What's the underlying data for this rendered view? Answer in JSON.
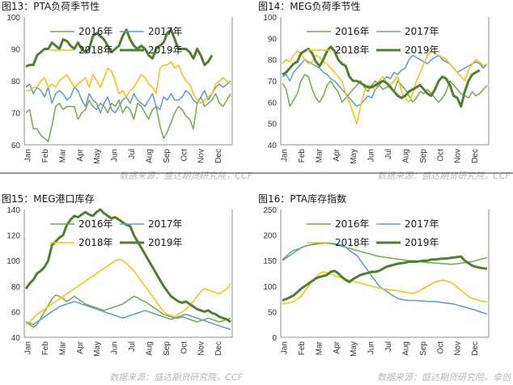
{
  "colors": {
    "y2016": "#70ad47",
    "y2017": "#5b9bd5",
    "y2018": "#ffc000",
    "y2019": "#4f7f2f"
  },
  "months": [
    "Jan",
    "Feb",
    "Mar",
    "Apr",
    "May",
    "Jun",
    "Jul",
    "Aug",
    "Sep",
    "Oct",
    "Nov",
    "Dec"
  ],
  "chart_data": [
    {
      "type": "line",
      "title": "图13：PTA负荷季节性",
      "source": "数据来源：盛达期货研究院，CCF",
      "ylim": [
        60,
        100
      ],
      "yticks": [
        60,
        70,
        80,
        90,
        100
      ],
      "xlabel": "",
      "ylabel": "",
      "legend_position": "top",
      "series": [
        {
          "name": "2016年",
          "key": "y2016",
          "values": [
            70,
            71,
            65,
            65,
            63,
            62,
            61,
            66,
            72,
            73,
            71,
            72,
            72,
            72,
            68,
            70,
            71,
            74,
            72,
            71,
            73,
            72,
            70,
            73,
            72,
            74,
            70,
            72,
            71,
            68,
            73,
            72,
            70,
            68,
            71,
            72,
            66,
            62,
            64,
            67,
            70,
            72,
            71,
            69,
            68,
            65,
            73,
            75,
            72,
            73,
            74,
            76,
            73,
            72,
            74,
            76
          ]
        },
        {
          "name": "2017年",
          "key": "y2017",
          "values": [
            78,
            79,
            76,
            78,
            77,
            75,
            78,
            73,
            76,
            77,
            76,
            74,
            75,
            78,
            77,
            74,
            72,
            76,
            74,
            73,
            70,
            73,
            75,
            71,
            70,
            72,
            74,
            75,
            73,
            76,
            74,
            73,
            72,
            74,
            76,
            72,
            71,
            75,
            74,
            76,
            74,
            74,
            75,
            77,
            76,
            74,
            73,
            75,
            77,
            74,
            76,
            78,
            79,
            78,
            79,
            80
          ]
        },
        {
          "name": "2018年",
          "key": "y2018",
          "values": [
            77,
            77,
            78,
            78,
            80,
            81,
            78,
            79,
            78,
            80,
            81,
            82,
            80,
            78,
            79,
            80,
            81,
            78,
            82,
            80,
            78,
            81,
            84,
            83,
            80,
            76,
            77,
            75,
            77,
            78,
            80,
            82,
            81,
            79,
            78,
            76,
            84,
            85,
            85,
            86,
            84,
            85,
            82,
            80,
            79,
            76,
            74,
            73,
            74,
            75,
            76,
            79,
            80,
            81,
            80,
            79
          ]
        },
        {
          "name": "2019年",
          "key": "y2019",
          "values": [
            84.5,
            85,
            85,
            88,
            89,
            90,
            90,
            92,
            91,
            90,
            93,
            92.5,
            91,
            90,
            92,
            90,
            89,
            90,
            94,
            95,
            94,
            93,
            91,
            89,
            90,
            91,
            94,
            96,
            93,
            91,
            90,
            91,
            90,
            88,
            87,
            90,
            91,
            92,
            95,
            96,
            93,
            90,
            90,
            90,
            89,
            87,
            90,
            88,
            85,
            86,
            88
          ]
        }
      ]
    },
    {
      "type": "line",
      "title": "图14：MEG负荷季节性",
      "source": "数据来源：盛达期货研究院，CCF",
      "ylim": [
        40,
        100
      ],
      "yticks": [
        40,
        50,
        60,
        70,
        80,
        90,
        100
      ],
      "xlabel": "",
      "ylabel": "",
      "legend_position": "top",
      "series": [
        {
          "name": "2016年",
          "key": "y2016",
          "values": [
            69,
            66,
            58,
            61,
            64,
            70,
            73,
            72,
            66,
            62,
            60,
            63,
            68,
            70,
            67,
            65,
            60,
            62,
            64,
            66,
            68,
            70,
            67,
            65,
            68,
            70,
            68,
            66,
            67,
            68,
            65,
            70,
            68,
            66,
            63,
            60,
            62,
            65,
            64,
            66,
            64,
            62,
            60,
            62,
            65,
            70,
            68,
            66,
            64,
            63,
            62,
            65,
            63,
            64,
            66,
            68
          ]
        },
        {
          "name": "2017年",
          "key": "y2017",
          "values": [
            72,
            73,
            70,
            74,
            76,
            78,
            80,
            79,
            78,
            77,
            76,
            74,
            73,
            71,
            70,
            68,
            66,
            64,
            62,
            60,
            58,
            59,
            61,
            63,
            62,
            66,
            68,
            70,
            72,
            71,
            74,
            73,
            75,
            76,
            80,
            82,
            81,
            80,
            79,
            78,
            80,
            81,
            82,
            80,
            79,
            78,
            76,
            74,
            75,
            76,
            77,
            78,
            79,
            78,
            76,
            78
          ]
        },
        {
          "name": "2018年",
          "key": "y2018",
          "values": [
            78,
            80,
            79,
            82,
            84,
            83,
            80,
            78,
            79,
            82,
            81,
            79,
            78,
            76,
            74,
            72,
            70,
            64,
            60,
            55,
            50,
            58,
            65,
            68,
            67,
            66,
            70,
            72,
            69,
            68,
            70,
            72,
            65,
            62,
            60,
            64,
            70,
            74,
            78,
            82,
            84,
            83,
            82,
            81,
            80,
            78,
            76,
            74,
            72,
            70,
            75,
            78,
            80,
            79,
            77,
            78
          ]
        },
        {
          "name": "2019年",
          "key": "y2019",
          "values": [
            73,
            74,
            76,
            78,
            79,
            83,
            84,
            85,
            83,
            79,
            77,
            80,
            84,
            86,
            84,
            80,
            78,
            77,
            72,
            70,
            70,
            69,
            68,
            67,
            67,
            68,
            69,
            70,
            69,
            67,
            65,
            63,
            62,
            63,
            65,
            66,
            67,
            68,
            66,
            64,
            63,
            66,
            70,
            72,
            71,
            68,
            63,
            62,
            58,
            65,
            70,
            73,
            74,
            75
          ]
        }
      ]
    },
    {
      "type": "line",
      "title": "图15：MEG港口库存",
      "source": "数据来源：盛达期货研究院，CCF",
      "ylim": [
        40,
        140
      ],
      "yticks": [
        40,
        60,
        80,
        100,
        120,
        140
      ],
      "xlabel": "",
      "ylabel": "",
      "legend_position": "top",
      "series": [
        {
          "name": "2016年",
          "key": "y2016",
          "values": [
            52,
            50,
            48,
            50,
            55,
            60,
            65,
            70,
            73,
            72,
            70,
            68,
            70,
            72,
            70,
            68,
            66,
            65,
            64,
            63,
            62,
            61,
            62,
            63,
            64,
            65,
            66,
            68,
            70,
            72,
            71,
            69,
            68,
            66,
            64,
            62,
            60,
            58,
            57,
            56,
            55,
            55,
            56,
            55,
            54,
            53,
            52,
            53,
            54,
            55,
            54,
            53,
            52,
            53,
            54,
            55
          ]
        },
        {
          "name": "2017年",
          "key": "y2017",
          "values": [
            52,
            51,
            50,
            52,
            54,
            56,
            58,
            60,
            62,
            64,
            65,
            66,
            67,
            68,
            67,
            66,
            65,
            64,
            63,
            62,
            61,
            60,
            59,
            58,
            57,
            56,
            55,
            56,
            57,
            58,
            59,
            60,
            61,
            60,
            59,
            58,
            57,
            56,
            55,
            54,
            55,
            56,
            57,
            58,
            57,
            56,
            55,
            54,
            53,
            52,
            51,
            50,
            49,
            48,
            47,
            46
          ]
        },
        {
          "name": "2018年",
          "key": "y2018",
          "values": [
            50,
            52,
            55,
            58,
            60,
            62,
            64,
            66,
            68,
            70,
            72,
            74,
            76,
            78,
            80,
            82,
            84,
            86,
            88,
            90,
            92,
            94,
            96,
            98,
            100,
            101,
            100,
            98,
            95,
            92,
            88,
            84,
            80,
            76,
            72,
            68,
            64,
            60,
            58,
            57,
            56,
            58,
            60,
            62,
            65,
            68,
            72,
            76,
            78,
            77,
            76,
            75,
            74,
            76,
            78,
            82
          ]
        },
        {
          "name": "2019年",
          "key": "y2019",
          "values": [
            78,
            82,
            85,
            90,
            92,
            95,
            100,
            112,
            115,
            118,
            120,
            128,
            132,
            135,
            134,
            136,
            138,
            136,
            135,
            138,
            140,
            137,
            135,
            133,
            134,
            132,
            130,
            128,
            127,
            120,
            115,
            110,
            105,
            100,
            95,
            90,
            85,
            80,
            76,
            72,
            70,
            68,
            67,
            68,
            66,
            64,
            62,
            61,
            60,
            61,
            59,
            58,
            56,
            55,
            54,
            52
          ]
        }
      ]
    },
    {
      "type": "line",
      "title": "图16：PTA库存指数",
      "source": "数据来源：盛达期货研究院，卓创",
      "ylim": [
        0,
        250
      ],
      "yticks": [
        0,
        50,
        100,
        150,
        200,
        250
      ],
      "xlabel": "",
      "ylabel": "",
      "legend_position": "top",
      "series": [
        {
          "name": "2016年",
          "key": "y2016",
          "values": [
            150,
            155,
            160,
            165,
            170,
            175,
            178,
            180,
            182,
            183,
            184,
            185,
            184,
            183,
            182,
            180,
            178,
            176,
            174,
            172,
            170,
            168,
            166,
            164,
            162,
            160,
            158,
            157,
            156,
            155,
            154,
            153,
            152,
            151,
            150,
            150,
            149,
            148,
            147,
            146,
            146,
            145,
            145,
            144,
            144,
            143,
            143,
            144,
            145,
            146,
            147,
            148,
            150,
            152,
            154,
            156
          ]
        },
        {
          "name": "2017年",
          "key": "y2017",
          "values": [
            152,
            158,
            165,
            170,
            172,
            175,
            178,
            180,
            181,
            182,
            183,
            184,
            185,
            184,
            183,
            182,
            180,
            176,
            170,
            165,
            160,
            150,
            140,
            130,
            120,
            110,
            100,
            95,
            90,
            85,
            80,
            76,
            74,
            73,
            72,
            72,
            72,
            71,
            71,
            70,
            70,
            70,
            69,
            68,
            67,
            66,
            65,
            63,
            61,
            59,
            57,
            55,
            53,
            50,
            48,
            45
          ]
        },
        {
          "name": "2018年",
          "key": "y2018",
          "values": [
            65,
            66,
            68,
            70,
            75,
            80,
            90,
            100,
            110,
            118,
            125,
            128,
            126,
            124,
            120,
            118,
            116,
            114,
            112,
            110,
            108,
            106,
            104,
            102,
            100,
            98,
            96,
            95,
            94,
            93,
            92,
            91,
            90,
            88,
            87,
            86,
            88,
            92,
            96,
            100,
            104,
            108,
            110,
            112,
            110,
            108,
            104,
            98,
            92,
            86,
            80,
            76,
            74,
            72,
            70,
            70
          ]
        },
        {
          "name": "2019年",
          "key": "y2019",
          "values": [
            72,
            75,
            78,
            82,
            88,
            95,
            100,
            105,
            110,
            115,
            118,
            120,
            122,
            128,
            130,
            125,
            118,
            112,
            108,
            114,
            118,
            122,
            124,
            126,
            128,
            128,
            130,
            134,
            138,
            140,
            142,
            144,
            145,
            146,
            148,
            148,
            148,
            149,
            150,
            150,
            152,
            152,
            153,
            154,
            154,
            155,
            156,
            157,
            158,
            150,
            145,
            140,
            138,
            136,
            135,
            134
          ]
        }
      ]
    }
  ]
}
